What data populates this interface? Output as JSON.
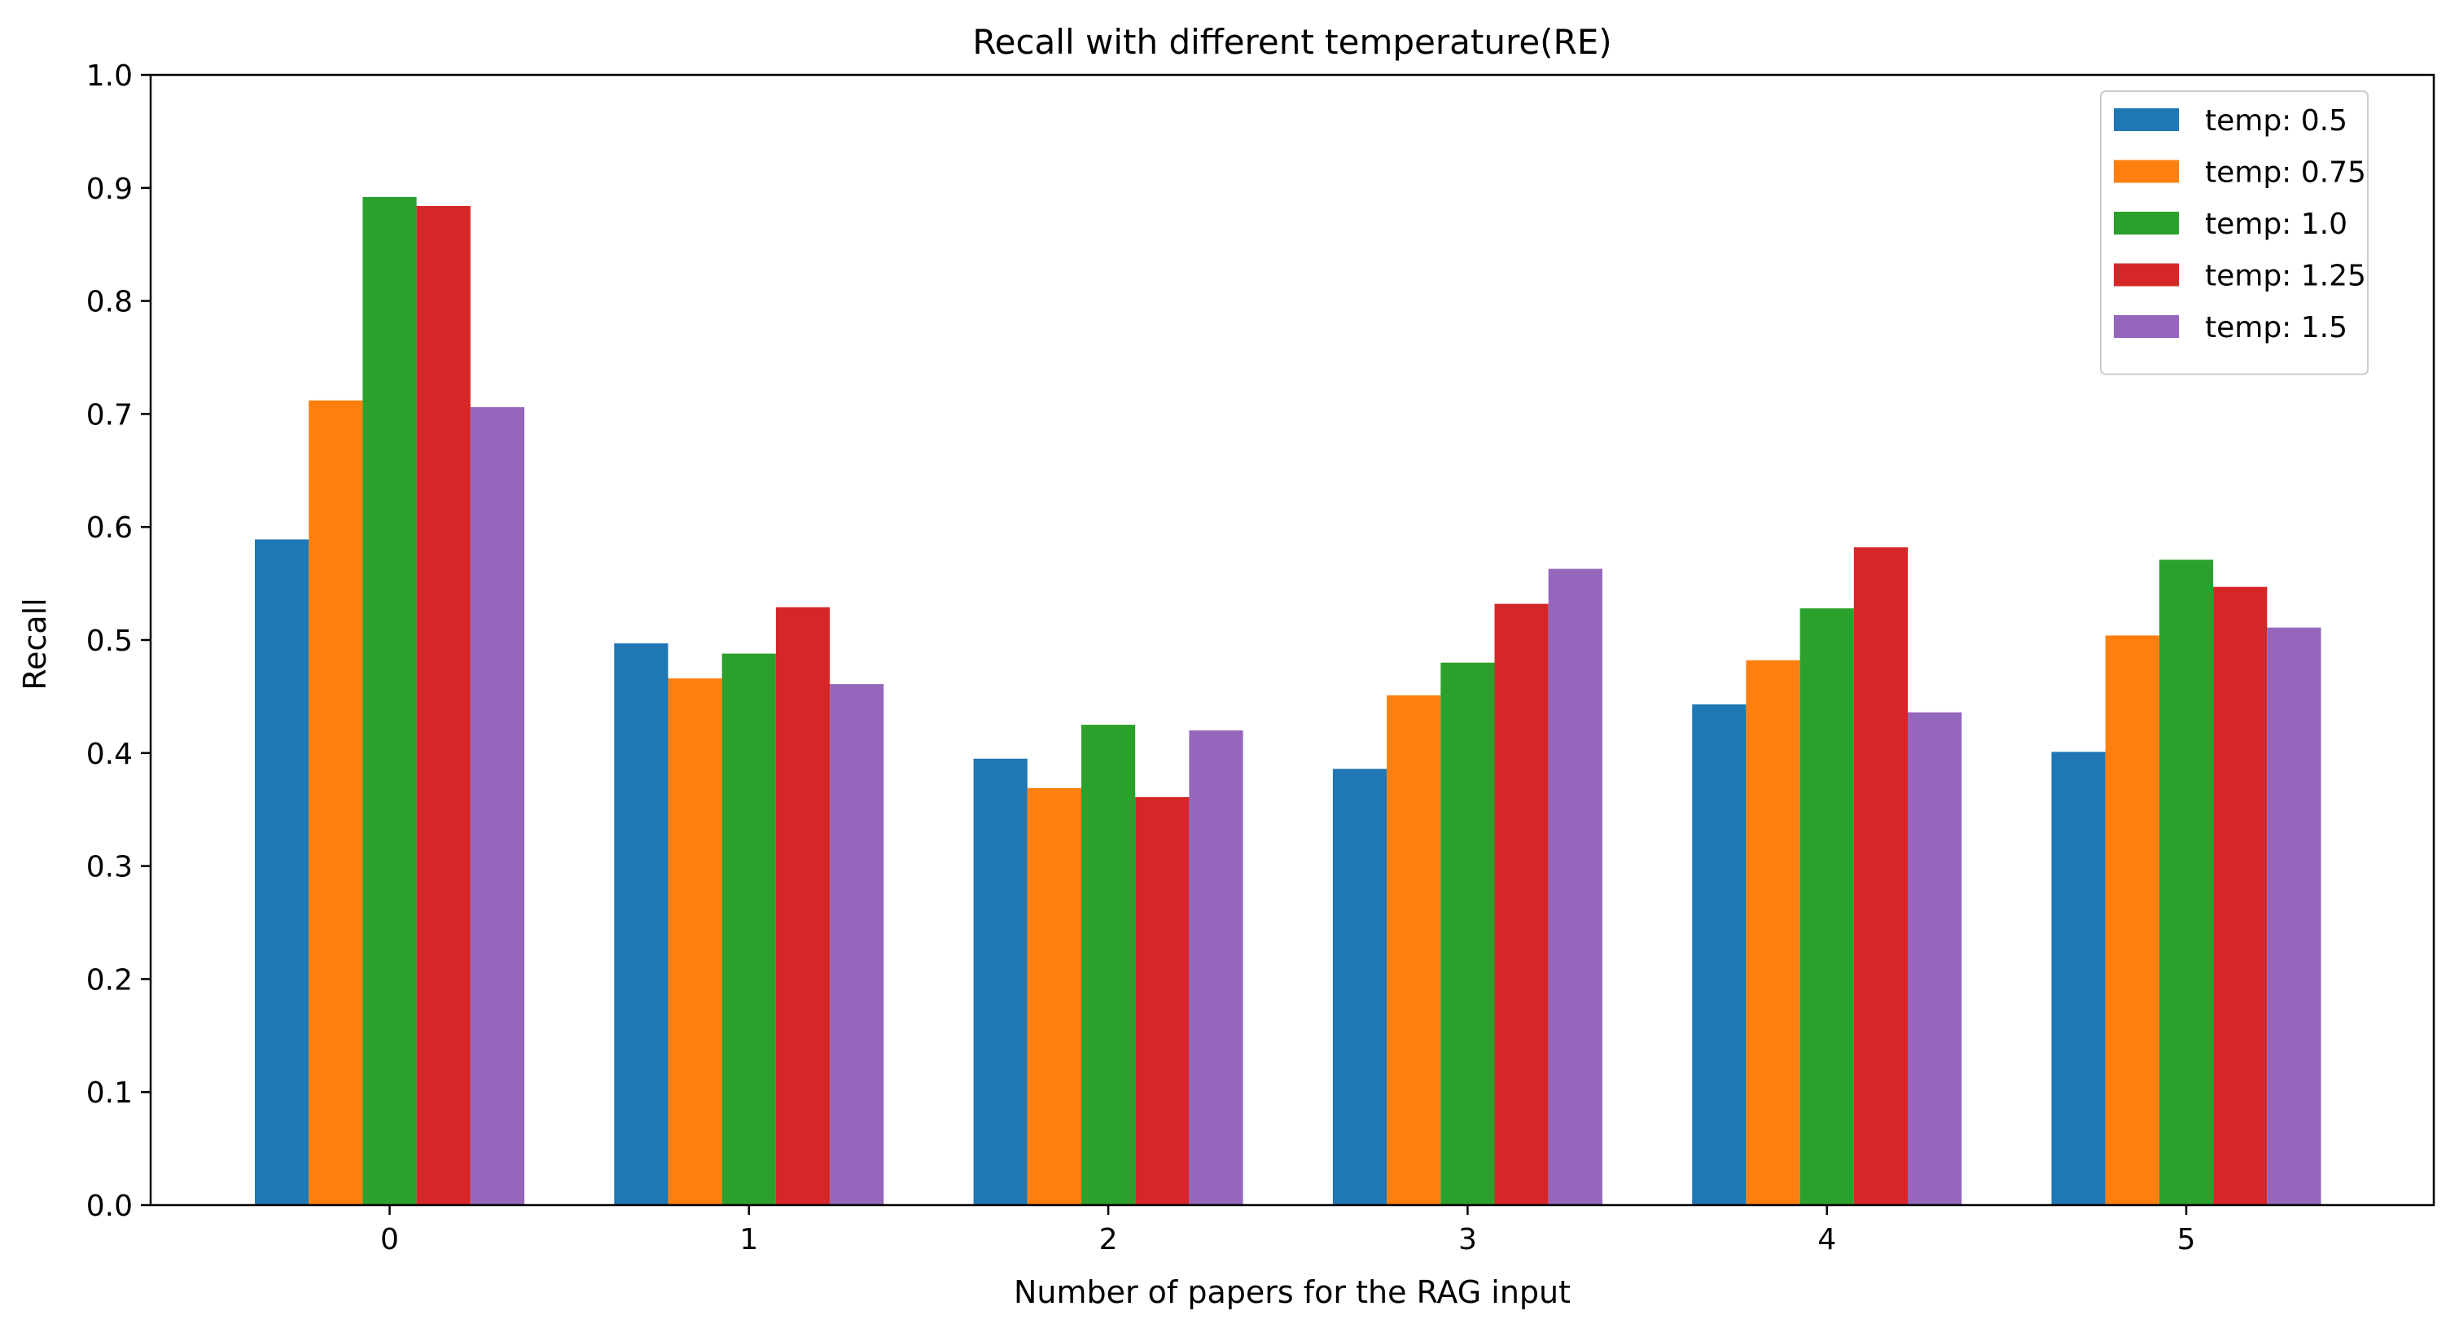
{
  "chart_data": {
    "type": "bar",
    "title": "Recall with different temperature(RE)",
    "xlabel": "Number of papers for the RAG input",
    "ylabel": "Recall",
    "categories": [
      "0",
      "1",
      "2",
      "3",
      "4",
      "5"
    ],
    "ylim": [
      0,
      1.0
    ],
    "yticks": [
      "0.0",
      "0.1",
      "0.2",
      "0.3",
      "0.4",
      "0.5",
      "0.6",
      "0.7",
      "0.8",
      "0.9",
      "1.0"
    ],
    "grid": false,
    "legend_position": "top-right",
    "series": [
      {
        "name": "temp: 0.5",
        "color": "#1f77b4",
        "values": [
          0.589,
          0.497,
          0.395,
          0.386,
          0.443,
          0.401
        ]
      },
      {
        "name": "temp: 0.75",
        "color": "#ff7f0e",
        "values": [
          0.712,
          0.466,
          0.369,
          0.451,
          0.482,
          0.504
        ]
      },
      {
        "name": "temp: 1.0",
        "color": "#2ca02c",
        "values": [
          0.892,
          0.488,
          0.425,
          0.48,
          0.528,
          0.571
        ]
      },
      {
        "name": "temp: 1.25",
        "color": "#d62728",
        "values": [
          0.884,
          0.529,
          0.361,
          0.532,
          0.582,
          0.547
        ]
      },
      {
        "name": "temp: 1.5",
        "color": "#9467bd",
        "values": [
          0.706,
          0.461,
          0.42,
          0.563,
          0.436,
          0.511
        ]
      }
    ]
  }
}
